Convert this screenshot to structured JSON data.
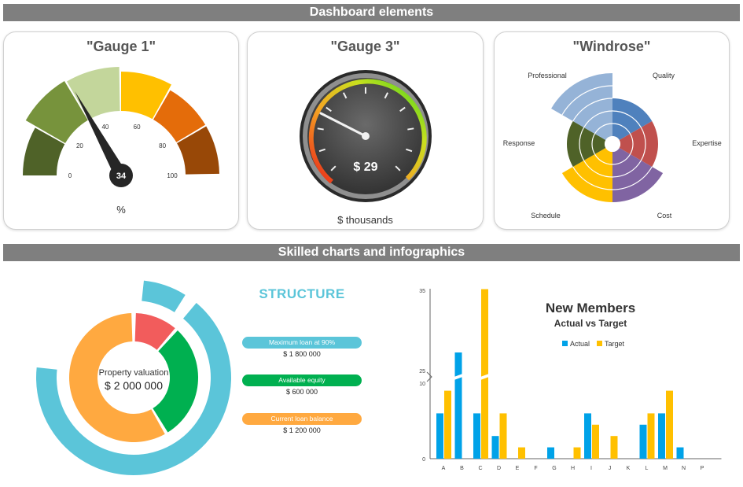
{
  "banners": {
    "top": "Dashboard elements",
    "bottom": "Skilled charts and infographics"
  },
  "colors": {
    "banner_bg": "#7f7f7f",
    "gauge_bands": [
      "#4f6228",
      "#77933c",
      "#c3d69b",
      "#ffc000",
      "#e46c0a",
      "#984807"
    ],
    "teal": "#5bc5d9",
    "orange": "#ffa940",
    "green": "#00b050",
    "red": "#f25c5c",
    "actual": "#00a2e8",
    "target": "#ffc000"
  },
  "gauge1": {
    "title": "\"Gauge 1\"",
    "value": 34,
    "value_label": "34",
    "min": 0,
    "max": 100,
    "ticks": [
      "0",
      "20",
      "40",
      "60",
      "80",
      "100"
    ],
    "unit": "%"
  },
  "gauge3": {
    "title": "\"Gauge 3\"",
    "value_label": "$ 29",
    "unit": "$ thousands"
  },
  "windrose": {
    "title": "\"Windrose\"",
    "categories": [
      "Quality",
      "Expertise",
      "Cost",
      "Schedule",
      "Response",
      "Professional"
    ],
    "levels": [
      3,
      3,
      4,
      4,
      3,
      5
    ],
    "colors": [
      "#4f81bd",
      "#c0504d",
      "#8064a2",
      "#ffc000",
      "#4f6228",
      "#95b3d7"
    ]
  },
  "infographic": {
    "title": "STRUCTURE",
    "center_label": "Property valuation",
    "center_value": "$ 2 000 000",
    "items": [
      {
        "label": "Maximum loan at 90%",
        "value": "$ 1 800 000"
      },
      {
        "label": "Available equity",
        "value": "$ 600 000"
      },
      {
        "label": "Current loan balance",
        "value": "$ 1 200 000"
      }
    ]
  },
  "chart_data": {
    "type": "bar",
    "title": "New Members",
    "subtitle": "Actual vs Target",
    "categories": [
      "A",
      "B",
      "C",
      "D",
      "E",
      "F",
      "G",
      "H",
      "I",
      "J",
      "K",
      "L",
      "M",
      "N",
      "P"
    ],
    "series": [
      {
        "name": "Actual",
        "values": [
          6,
          27,
          6,
          3,
          0,
          0,
          1.5,
          0,
          6,
          0,
          0,
          4.5,
          6,
          1.5,
          0
        ]
      },
      {
        "name": "Target",
        "values": [
          9,
          0,
          34,
          6,
          1.5,
          0,
          0,
          1.5,
          4.5,
          3,
          0,
          6,
          9,
          0,
          0
        ]
      }
    ],
    "y_ticks": [
      "0",
      "10",
      "25",
      "35"
    ],
    "ylim": [
      0,
      35
    ],
    "axis_break": [
      10,
      25
    ],
    "legend": "top"
  }
}
